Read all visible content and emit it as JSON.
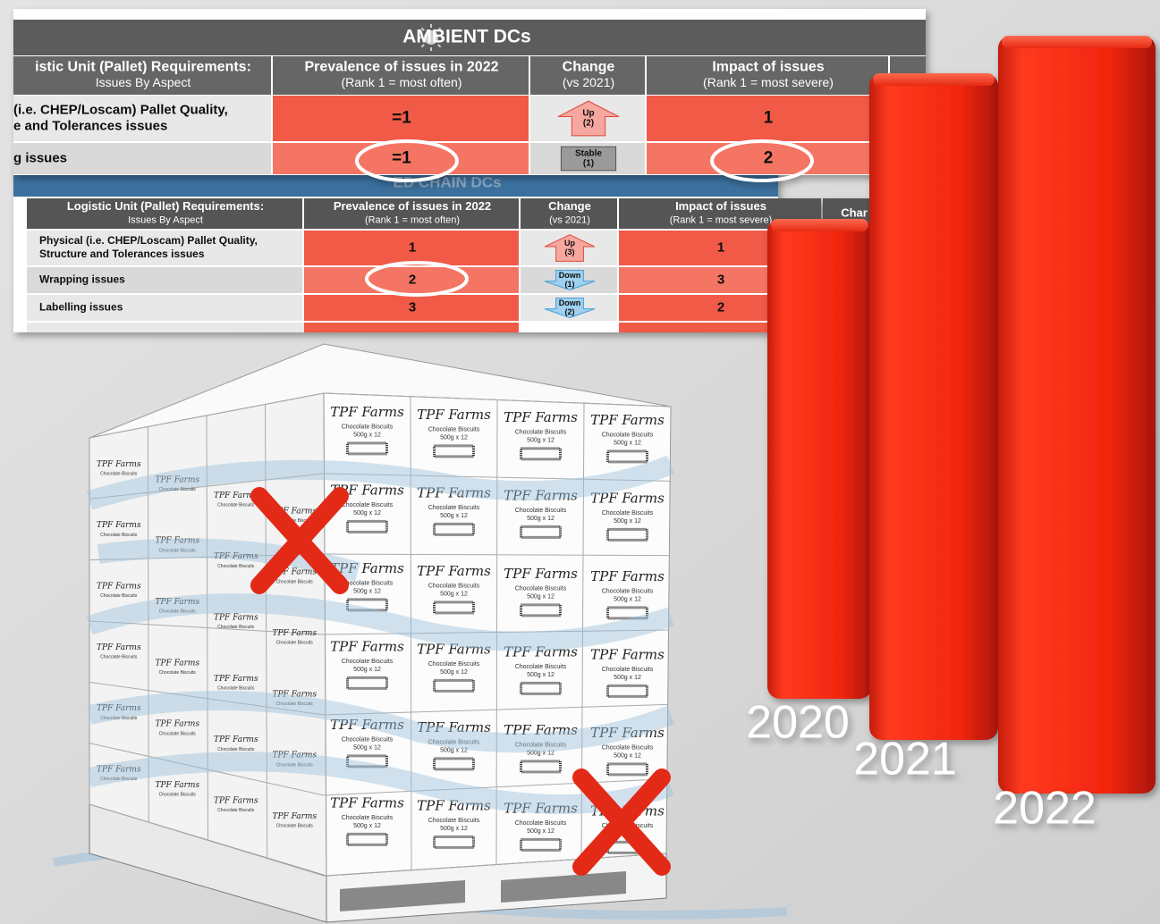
{
  "ambient_table": {
    "title": "AMBIENT DCs",
    "headers": [
      [
        "istic Unit (Pallet) Requirements:",
        "Issues By Aspect"
      ],
      [
        "Prevalence of issues in 2022",
        "(Rank 1 = most often)"
      ],
      [
        "Change",
        "(vs 2021)"
      ],
      [
        "Impact of issues",
        "(Rank 1 = most severe)"
      ]
    ],
    "rows": [
      {
        "aspect": [
          "(i.e. CHEP/Loscam) Pallet Quality,",
          "e and Tolerances issues"
        ],
        "prevalence": "=1",
        "change": [
          "Up",
          "(2)"
        ],
        "direction": "up",
        "impact": "1"
      },
      {
        "aspect": [
          "g issues"
        ],
        "prevalence": "=1",
        "change": [
          "Stable",
          "(1)"
        ],
        "direction": "stable",
        "impact": "2"
      }
    ]
  },
  "chilled_table": {
    "title": "ED CHAIN DCs",
    "headers": [
      [
        "Logistic Unit (Pallet) Requirements:",
        "Issues By Aspect"
      ],
      [
        "Prevalence of issues in 2022",
        "(Rank 1 = most often)"
      ],
      [
        "Change",
        "(vs 2021)"
      ],
      [
        "Impact of issues",
        "(Rank 1 = most severe)"
      ],
      [
        "Char"
      ]
    ],
    "rows": [
      {
        "aspect": [
          "Physical (i.e. CHEP/Loscam) Pallet Quality,",
          "Structure and Tolerances issues"
        ],
        "prevalence": "1",
        "change": [
          "Up",
          "(3)"
        ],
        "direction": "up",
        "impact": "1"
      },
      {
        "aspect": [
          "Wrapping issues"
        ],
        "prevalence": "2",
        "change": [
          "Down",
          "(1)"
        ],
        "direction": "down",
        "impact": "3"
      },
      {
        "aspect": [
          "Labelling issues"
        ],
        "prevalence": "3",
        "change": [
          "Down",
          "(2)"
        ],
        "direction": "down",
        "impact": "2"
      }
    ]
  },
  "pallet": {
    "brand": "TPF Farms",
    "product": "Chocolate Biscuits",
    "pack": "500g x 12"
  },
  "years": [
    "2020",
    "2021",
    "2022"
  ]
}
